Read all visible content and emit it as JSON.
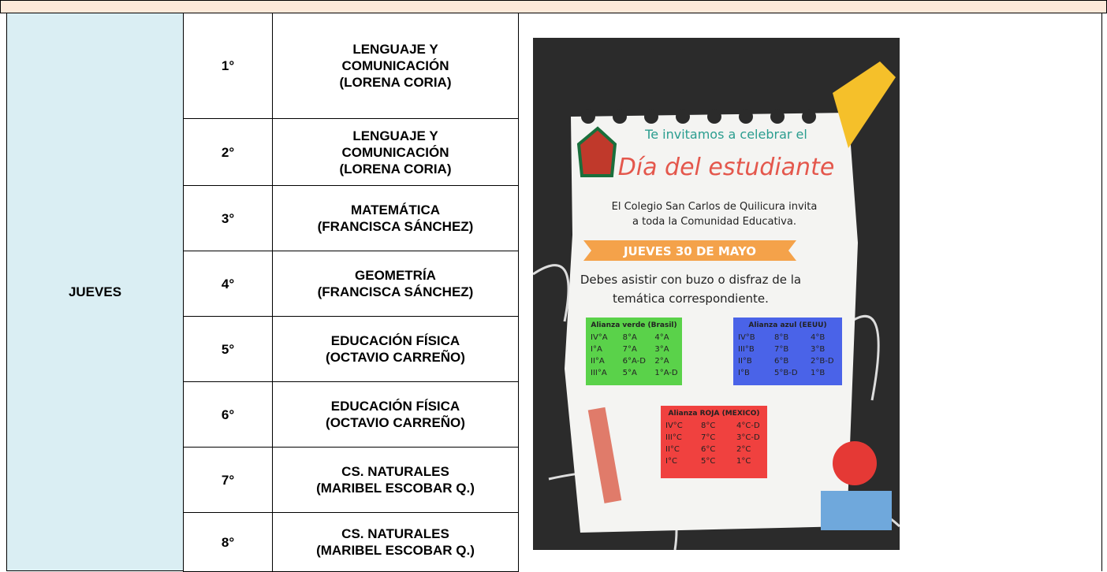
{
  "table": {
    "day": "JUEVES",
    "rows": [
      {
        "period": "1°",
        "subject": [
          "LENGUAJE Y",
          "COMUNICACIÓN",
          "(LORENA CORIA)"
        ]
      },
      {
        "period": "2°",
        "subject": [
          "LENGUAJE Y",
          "COMUNICACIÓN",
          "(LORENA CORIA)"
        ]
      },
      {
        "period": "3°",
        "subject": [
          "MATEMÁTICA",
          "(FRANCISCA SÁNCHEZ)"
        ]
      },
      {
        "period": "4°",
        "subject": [
          "GEOMETRÍA",
          "(FRANCISCA SÁNCHEZ)"
        ]
      },
      {
        "period": "5°",
        "subject": [
          "EDUCACIÓN FÍSICA",
          "(OCTAVIO CARREÑO)"
        ]
      },
      {
        "period": "6°",
        "subject": [
          "EDUCACIÓN FÍSICA",
          "(OCTAVIO CARREÑO)"
        ]
      },
      {
        "period": "7°",
        "subject": [
          "CS. NATURALES",
          "(MARIBEL ESCOBAR Q.)"
        ]
      },
      {
        "period": "8°",
        "subject": [
          "CS. NATURALES",
          "(MARIBEL ESCOBAR Q.)"
        ]
      }
    ]
  },
  "poster": {
    "invite": "Te invitamos a celebrar el",
    "title": "Día del estudiante",
    "body": [
      "El Colegio San Carlos de Quilicura invita",
      "a toda la Comunidad Educativa."
    ],
    "date": "JUEVES 30 DE MAYO",
    "dress": [
      "Debes asistir con buzo o disfraz de la",
      "temática correspondiente."
    ],
    "alliances": [
      {
        "name": "Alianza verde (Brasil)",
        "rows": [
          [
            "IV°A",
            "8°A",
            "4°A"
          ],
          [
            "I°A",
            "7°A",
            "3°A"
          ],
          [
            "II°A",
            "6°A-D",
            "2°A"
          ],
          [
            "III°A",
            "5°A",
            "1°A-D"
          ]
        ]
      },
      {
        "name": "Alianza azul (EEUU)",
        "rows": [
          [
            "IV°B",
            "8°B",
            "4°B"
          ],
          [
            "III°B",
            "7°B",
            "3°B"
          ],
          [
            "II°B",
            "6°B",
            "2°B-D"
          ],
          [
            "I°B",
            "5°B-D",
            "1°B"
          ]
        ]
      },
      {
        "name": "Alianza ROJA (MEXICO)",
        "rows": [
          [
            "IV°C",
            "8°C",
            "4°C-D"
          ],
          [
            "III°C",
            "7°C",
            "3°C-D"
          ],
          [
            "II°C",
            "6°C",
            "2°C"
          ],
          [
            "I°C",
            "5°C",
            "1°C"
          ]
        ]
      }
    ]
  }
}
